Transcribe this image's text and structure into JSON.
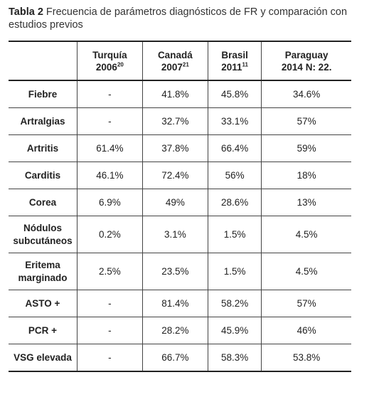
{
  "caption": {
    "label": "Tabla 2",
    "text": "Frecuencia de parámetros diagnósticos de FR y comparación con estudios previos"
  },
  "table": {
    "headers": [
      {
        "line1": "Turquía",
        "line2": "2006",
        "sup": "20"
      },
      {
        "line1": "Canadá",
        "line2": "2007",
        "sup": "21"
      },
      {
        "line1": "Brasil",
        "line2": "2011",
        "sup": "11"
      },
      {
        "line1": "Paraguay",
        "line2": "2014 N: 22."
      }
    ],
    "rows": [
      [
        "Fiebre",
        "-",
        "41.8%",
        "45.8%",
        "34.6%"
      ],
      [
        "Artralgias",
        "-",
        "32.7%",
        "33.1%",
        "57%"
      ],
      [
        "Artritis",
        "61.4%",
        "37.8%",
        "66.4%",
        "59%"
      ],
      [
        "Carditis",
        "46.1%",
        "72.4%",
        "56%",
        "18%"
      ],
      [
        "Corea",
        "6.9%",
        "49%",
        "28.6%",
        "13%"
      ],
      [
        "Nódulos subcutáneos",
        "0.2%",
        "3.1%",
        "1.5%",
        "4.5%"
      ],
      [
        "Eritema marginado",
        "2.5%",
        "23.5%",
        "1.5%",
        "4.5%"
      ],
      [
        "ASTO +",
        "-",
        "81.4%",
        "58.2%",
        "57%"
      ],
      [
        "PCR +",
        "-",
        "28.2%",
        "45.9%",
        "46%"
      ],
      [
        "VSG elevada",
        "-",
        "66.7%",
        "58.3%",
        "53.8%"
      ]
    ]
  }
}
